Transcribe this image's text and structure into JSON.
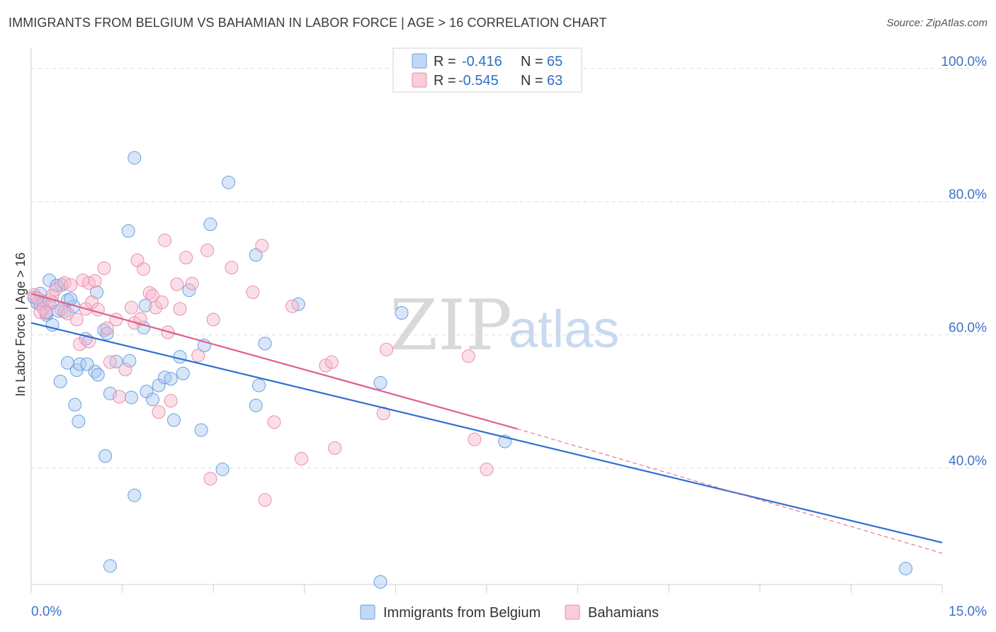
{
  "title": "IMMIGRANTS FROM BELGIUM VS BAHAMIAN IN LABOR FORCE | AGE > 16 CORRELATION CHART",
  "source": "Source: ZipAtlas.com",
  "watermark": {
    "part1": "ZIP",
    "part2": "atlas"
  },
  "colors": {
    "blue_fill": "#a9c8f0",
    "blue_stroke": "#6a9fe0",
    "blue_line": "#2f6fd0",
    "pink_fill": "#f6b8cb",
    "pink_stroke": "#ea8eab",
    "pink_line": "#e0608a",
    "tick_text": "#3b73c9",
    "grid": "#dcdcdc"
  },
  "legend_top": {
    "rows": [
      {
        "r_label": "R =",
        "r_value": "-0.416",
        "n_label": "N =",
        "n_value": "65",
        "color": "blue"
      },
      {
        "r_label": "R =",
        "r_value": "-0.545",
        "n_label": "N =",
        "n_value": "63",
        "color": "pink"
      }
    ]
  },
  "chart_data": {
    "type": "scatter",
    "title": "IMMIGRANTS FROM BELGIUM VS BAHAMIAN IN LABOR FORCE | AGE > 16 CORRELATION CHART",
    "xlabel": "",
    "ylabel": "In Labor Force | Age > 16",
    "xlim": [
      0,
      15
    ],
    "ylim": [
      22.5,
      102
    ],
    "x_tick_labels": [
      "0.0%",
      "15.0%"
    ],
    "y_ticks": [
      40,
      60,
      80,
      100
    ],
    "y_tick_labels": [
      "40.0%",
      "60.0%",
      "80.0%",
      "100.0%"
    ],
    "grid": true,
    "legend_position": "bottom",
    "series": [
      {
        "name": "Immigrants from Belgium",
        "color": "blue",
        "r": -0.416,
        "n": 65,
        "trend": {
          "x": [
            0,
            15
          ],
          "y": [
            61.8,
            28.8
          ]
        },
        "points": [
          [
            0.05,
            65.6
          ],
          [
            0.1,
            64.8
          ],
          [
            0.15,
            66.2
          ],
          [
            0.2,
            65.0
          ],
          [
            0.25,
            63.0
          ],
          [
            0.3,
            68.2
          ],
          [
            0.35,
            64.9
          ],
          [
            0.45,
            63.6
          ],
          [
            0.5,
            67.5
          ],
          [
            0.6,
            65.2
          ],
          [
            0.7,
            64.3
          ],
          [
            0.75,
            54.7
          ],
          [
            0.8,
            55.6
          ],
          [
            0.9,
            59.4
          ],
          [
            1.05,
            54.5
          ],
          [
            1.1,
            54.0
          ],
          [
            1.2,
            60.7
          ],
          [
            1.25,
            60.2
          ],
          [
            1.3,
            51.2
          ],
          [
            1.4,
            56.0
          ],
          [
            1.6,
            75.6
          ],
          [
            1.62,
            56.1
          ],
          [
            1.65,
            50.6
          ],
          [
            1.7,
            35.9
          ],
          [
            1.7,
            86.6
          ],
          [
            1.85,
            61.1
          ],
          [
            1.88,
            64.4
          ],
          [
            1.9,
            51.5
          ],
          [
            2.0,
            50.3
          ],
          [
            2.1,
            52.4
          ],
          [
            2.2,
            53.6
          ],
          [
            2.3,
            53.4
          ],
          [
            2.35,
            47.2
          ],
          [
            2.45,
            56.7
          ],
          [
            2.5,
            54.2
          ],
          [
            2.6,
            66.7
          ],
          [
            2.8,
            45.7
          ],
          [
            2.85,
            58.4
          ],
          [
            2.95,
            76.6
          ],
          [
            3.15,
            39.8
          ],
          [
            3.25,
            82.9
          ],
          [
            3.7,
            72.0
          ],
          [
            3.75,
            52.4
          ],
          [
            3.85,
            58.7
          ],
          [
            3.7,
            49.4
          ],
          [
            4.4,
            64.6
          ],
          [
            5.75,
            52.8
          ],
          [
            5.75,
            22.9
          ],
          [
            6.1,
            63.3
          ],
          [
            7.8,
            44.0
          ],
          [
            14.4,
            24.9
          ],
          [
            1.3,
            25.3
          ],
          [
            1.22,
            41.8
          ],
          [
            0.78,
            47.0
          ],
          [
            0.72,
            49.5
          ],
          [
            0.48,
            53.0
          ],
          [
            0.6,
            55.8
          ],
          [
            0.92,
            55.6
          ],
          [
            0.35,
            61.5
          ],
          [
            0.25,
            63.3
          ],
          [
            0.55,
            63.5
          ],
          [
            0.65,
            65.4
          ],
          [
            1.08,
            66.4
          ],
          [
            0.15,
            64.6
          ],
          [
            0.42,
            67.4
          ]
        ]
      },
      {
        "name": "Bahamians",
        "color": "pink",
        "r": -0.545,
        "n": 63,
        "trend": {
          "x": [
            0,
            8.0
          ],
          "y": [
            66.2,
            45.9
          ]
        },
        "trend_dashed": {
          "x": [
            8.0,
            15
          ],
          "y": [
            45.9,
            27.2
          ]
        },
        "points": [
          [
            0.05,
            66.0
          ],
          [
            0.1,
            65.5
          ],
          [
            0.2,
            64.0
          ],
          [
            0.25,
            63.5
          ],
          [
            0.3,
            65.2
          ],
          [
            0.4,
            66.8
          ],
          [
            0.5,
            63.8
          ],
          [
            0.55,
            67.8
          ],
          [
            0.6,
            63.2
          ],
          [
            0.65,
            67.5
          ],
          [
            0.75,
            62.3
          ],
          [
            0.8,
            58.6
          ],
          [
            0.85,
            68.2
          ],
          [
            0.9,
            63.9
          ],
          [
            0.95,
            67.8
          ],
          [
            1.0,
            64.9
          ],
          [
            1.05,
            68.1
          ],
          [
            1.1,
            63.8
          ],
          [
            1.2,
            70.0
          ],
          [
            1.25,
            61.0
          ],
          [
            1.3,
            55.9
          ],
          [
            1.4,
            62.3
          ],
          [
            1.45,
            50.7
          ],
          [
            1.55,
            54.8
          ],
          [
            1.65,
            64.1
          ],
          [
            1.7,
            61.8
          ],
          [
            1.75,
            71.2
          ],
          [
            1.8,
            62.4
          ],
          [
            1.85,
            69.9
          ],
          [
            1.95,
            66.3
          ],
          [
            2.0,
            65.9
          ],
          [
            2.05,
            64.1
          ],
          [
            2.1,
            48.4
          ],
          [
            2.15,
            64.9
          ],
          [
            2.2,
            74.2
          ],
          [
            2.25,
            60.4
          ],
          [
            2.3,
            50.1
          ],
          [
            2.4,
            67.6
          ],
          [
            2.45,
            63.9
          ],
          [
            2.55,
            71.6
          ],
          [
            2.65,
            67.7
          ],
          [
            2.75,
            56.9
          ],
          [
            2.9,
            72.7
          ],
          [
            2.95,
            38.4
          ],
          [
            3.0,
            62.3
          ],
          [
            3.3,
            70.1
          ],
          [
            3.65,
            66.4
          ],
          [
            3.8,
            73.4
          ],
          [
            3.85,
            35.2
          ],
          [
            4.0,
            46.9
          ],
          [
            4.3,
            64.3
          ],
          [
            4.45,
            41.4
          ],
          [
            4.85,
            55.4
          ],
          [
            4.95,
            55.9
          ],
          [
            5.0,
            43.0
          ],
          [
            5.8,
            48.2
          ],
          [
            5.85,
            57.8
          ],
          [
            7.2,
            56.8
          ],
          [
            7.3,
            44.3
          ],
          [
            7.5,
            39.8
          ],
          [
            0.35,
            65.9
          ],
          [
            0.15,
            63.4
          ],
          [
            0.95,
            59.0
          ]
        ]
      }
    ]
  },
  "bottom_legend": [
    {
      "label": "Immigrants from Belgium",
      "color": "blue"
    },
    {
      "label": "Bahamians",
      "color": "pink"
    }
  ]
}
